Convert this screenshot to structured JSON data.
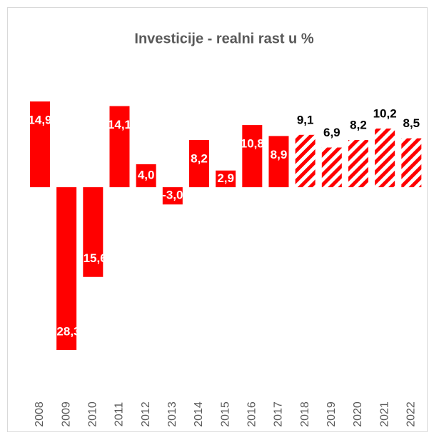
{
  "chart_data": {
    "type": "bar",
    "title": "Investicije - realni rast u %",
    "categories": [
      "2008",
      "2009",
      "2010",
      "2011",
      "2012",
      "2013",
      "2014",
      "2015",
      "2016",
      "2017",
      "2018",
      "2019",
      "2020",
      "2021",
      "2022"
    ],
    "values": [
      14.9,
      -28.3,
      -15.6,
      14.1,
      4.0,
      -3.0,
      8.2,
      2.9,
      10.8,
      8.9,
      9.1,
      6.9,
      8.2,
      10.2,
      8.5
    ],
    "value_labels": [
      "14,9",
      "-28,3",
      "-15,6",
      "14,1",
      "4,0",
      "-3,0",
      "8,2",
      "2,9",
      "10,8",
      "8,9",
      "9,1",
      "6,9",
      "8,2",
      "10,2",
      "8,5"
    ],
    "hatched": [
      false,
      false,
      false,
      false,
      false,
      false,
      false,
      false,
      false,
      false,
      true,
      true,
      true,
      true,
      true
    ],
    "color": "#ff0000",
    "ylim": [
      -35,
      20
    ]
  }
}
